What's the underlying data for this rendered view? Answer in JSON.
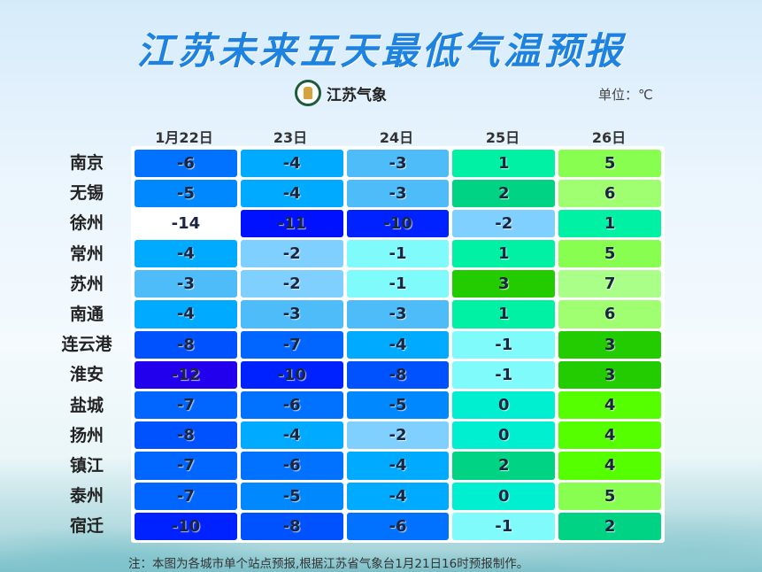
{
  "title": "江苏未来五天最低气温预报",
  "logo_text": "江苏气象",
  "unit": "单位：℃",
  "dates": [
    "1月22日",
    "23日",
    "24日",
    "25日",
    "26日"
  ],
  "rows": [
    {
      "city": "南京",
      "values": [
        -6,
        -4,
        -3,
        1,
        5
      ]
    },
    {
      "city": "无锡",
      "values": [
        -5,
        -4,
        -3,
        2,
        6
      ]
    },
    {
      "city": "徐州",
      "values": [
        -14,
        -11,
        -10,
        -2,
        1
      ]
    },
    {
      "city": "常州",
      "values": [
        -4,
        -2,
        -1,
        1,
        5
      ]
    },
    {
      "city": "苏州",
      "values": [
        -3,
        -2,
        -1,
        3,
        7
      ]
    },
    {
      "city": "南通",
      "values": [
        -4,
        -3,
        -3,
        1,
        6
      ]
    },
    {
      "city": "连云港",
      "values": [
        -8,
        -7,
        -4,
        -1,
        3
      ]
    },
    {
      "city": "淮安",
      "values": [
        -12,
        -10,
        -8,
        -1,
        3
      ]
    },
    {
      "city": "盐城",
      "values": [
        -7,
        -6,
        -5,
        0,
        4
      ]
    },
    {
      "city": "扬州",
      "values": [
        -8,
        -4,
        -2,
        0,
        4
      ]
    },
    {
      "city": "镇江",
      "values": [
        -7,
        -6,
        -4,
        2,
        4
      ]
    },
    {
      "city": "泰州",
      "values": [
        -7,
        -5,
        -4,
        0,
        5
      ]
    },
    {
      "city": "宿迁",
      "values": [
        -10,
        -8,
        -6,
        -1,
        2
      ]
    }
  ],
  "color_scale": {
    "-14": "#ffffff",
    "-12": "#2200ee",
    "-11": "#0011ff",
    "-10": "#0022ff",
    "-8": "#0052ff",
    "-7": "#0066ff",
    "-6": "#0072ff",
    "-5": "#0088ff",
    "-4": "#00aaff",
    "-3": "#4dbcf8",
    "-2": "#80d0ff",
    "-1": "#80fbfb",
    "0": "#00efd0",
    "1": "#00f0a4",
    "2": "#00d484",
    "3": "#22cc00",
    "4": "#55ff00",
    "5": "#88ff50",
    "6": "#a0ff70",
    "7": "#aaff88"
  },
  "note": "注：本图为各城市单个站点预报,根据江苏省气象台1月21日16时预报制作。"
}
